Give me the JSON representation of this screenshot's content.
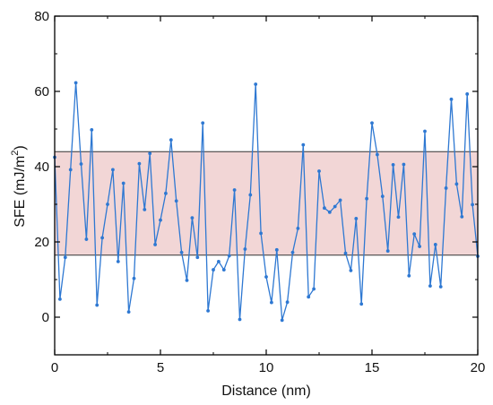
{
  "chart_data": {
    "type": "line",
    "xlabel": "Distance (nm)",
    "ylabel_main": "SFE (mJ/m",
    "ylabel_sup": "2",
    "ylabel_close": ")",
    "xlim": [
      0,
      20
    ],
    "ylim": [
      -10,
      80
    ],
    "xticks": [
      0,
      5,
      10,
      15,
      20
    ],
    "yticks": [
      0,
      20,
      40,
      60,
      80
    ],
    "grid": false,
    "band": {
      "ymin": 16.5,
      "ymax": 44,
      "fill": "#f2d6d6",
      "stroke": "#333333"
    },
    "series": [
      {
        "color": "#2e78d2",
        "x": [
          0,
          0.25,
          0.5,
          0.75,
          1.0,
          1.25,
          1.5,
          1.75,
          2.0,
          2.25,
          2.5,
          2.75,
          3.0,
          3.25,
          3.5,
          3.75,
          4.0,
          4.25,
          4.5,
          4.75,
          5.0,
          5.25,
          5.5,
          5.75,
          6.0,
          6.25,
          6.5,
          6.75,
          7.0,
          7.25,
          7.5,
          7.75,
          8.0,
          8.25,
          8.5,
          8.75,
          9.0,
          9.25,
          9.5,
          9.75,
          10.0,
          10.25,
          10.5,
          10.75,
          11.0,
          11.25,
          11.5,
          11.75,
          12.0,
          12.25,
          12.5,
          12.75,
          13.0,
          13.25,
          13.5,
          13.75,
          14.0,
          14.25,
          14.5,
          14.75,
          15.0,
          15.25,
          15.5,
          15.75,
          16.0,
          16.25,
          16.5,
          16.75,
          17.0,
          17.25,
          17.5,
          17.75,
          18.0,
          18.25,
          18.5,
          18.75,
          19.0,
          19.25,
          19.5,
          19.75,
          20.0
        ],
        "values": [
          42.5,
          4.8,
          15.9,
          39.2,
          62.3,
          40.7,
          20.7,
          49.8,
          3.2,
          21.1,
          30.0,
          39.2,
          14.8,
          35.6,
          1.4,
          10.3,
          40.8,
          28.6,
          43.5,
          19.3,
          25.8,
          32.9,
          47.1,
          30.9,
          17.2,
          9.8,
          26.4,
          15.9,
          51.6,
          1.7,
          12.6,
          14.8,
          12.6,
          16.3,
          33.8,
          -0.6,
          18.1,
          32.5,
          61.9,
          22.3,
          10.7,
          3.9,
          17.9,
          -0.8,
          4.0,
          17.2,
          23.6,
          45.8,
          5.4,
          7.5,
          38.8,
          29.0,
          27.9,
          29.4,
          31.1,
          17.0,
          12.4,
          26.2,
          3.5,
          31.5,
          51.6,
          43.2,
          32.1,
          17.6,
          40.5,
          26.6,
          40.6,
          11.0,
          22.1,
          18.8,
          49.4,
          8.3,
          19.3,
          8.1,
          34.3,
          57.9,
          35.4,
          26.7,
          59.3,
          29.9,
          16.2
        ]
      }
    ]
  }
}
